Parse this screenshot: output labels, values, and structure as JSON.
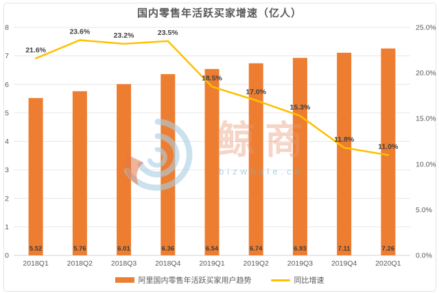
{
  "title": "国内零售年活跃买家增速（亿人）",
  "chart_data": {
    "type": "combo-bar-line",
    "title": "国内零售年活跃买家增速（亿人）",
    "categories": [
      "2018Q1",
      "2018Q2",
      "2018Q3",
      "2018Q4",
      "2019Q1",
      "2019Q2",
      "2019Q3",
      "2019Q4",
      "2020Q1"
    ],
    "series": [
      {
        "name": "阿里国内零售年活跃买家用户趋势",
        "type": "bar",
        "axis": "left",
        "color": "#ED7D31",
        "values": [
          5.52,
          5.76,
          6.01,
          6.36,
          6.54,
          6.74,
          6.93,
          7.11,
          7.26
        ],
        "labels": [
          "5.52",
          "5.76",
          "6.01",
          "6.36",
          "6.54",
          "6.74",
          "6.93",
          "7.11",
          "7.26"
        ]
      },
      {
        "name": "同比增速",
        "type": "line",
        "axis": "right",
        "color": "#FFC000",
        "values": [
          21.6,
          23.6,
          23.2,
          23.5,
          18.5,
          17.0,
          15.3,
          11.8,
          11.0
        ],
        "labels": [
          "21.6%",
          "23.6%",
          "23.2%",
          "23.5%",
          "18.5%",
          "17.0%",
          "15.3%",
          "11.8%",
          "11.0%"
        ]
      }
    ],
    "left_axis": {
      "min": 0,
      "max": 8,
      "step": 1,
      "ticks": [
        "0",
        "1",
        "2",
        "3",
        "4",
        "5",
        "6",
        "7",
        "8"
      ]
    },
    "right_axis": {
      "min": 0,
      "max": 25,
      "step": 5,
      "ticks": [
        "0.0%",
        "5.0%",
        "10.0%",
        "15.0%",
        "20.0%",
        "25.0%"
      ]
    },
    "grid": true,
    "legend_position": "bottom"
  },
  "legend": {
    "bar_label": "阿里国内零售年活跃买家用户趋势",
    "line_label": "同比增速"
  },
  "watermark": {
    "brand": "鲸商",
    "site": "bizwhale.cn"
  },
  "colors": {
    "bar": "#ED7D31",
    "line": "#FFC000",
    "grid": "#E6E6E6",
    "axis_text": "#595959",
    "point_label_text": "#404040",
    "bar_label_text": "#3D3D3D"
  }
}
